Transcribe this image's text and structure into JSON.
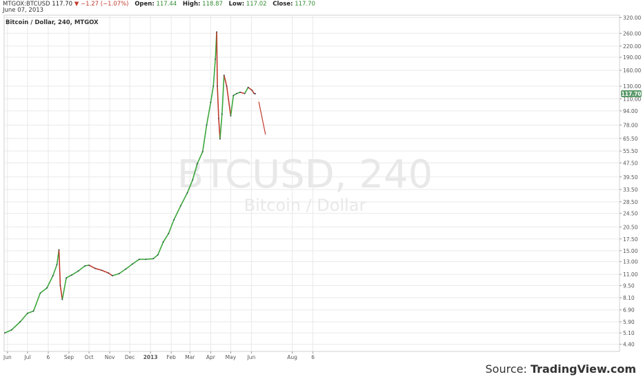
{
  "header": {
    "symbol": "MTGOX:BTCUSD",
    "last": "117.70",
    "change_arrow": "▼",
    "change": "−1.27 (−1.07%)",
    "open_label": "Open:",
    "open": "117.44",
    "high_label": "High:",
    "high": "118.87",
    "low_label": "Low:",
    "low": "117.02",
    "close_label": "Close:",
    "close": "117.70",
    "date": "June 07, 2013"
  },
  "chart_title": "Bitcoin / Dollar, 240, MTGOX",
  "watermark": {
    "line1": "BTCUSD, 240",
    "line2": "Bitcoin / Dollar"
  },
  "source": {
    "prefix": "Source: ",
    "brand": "TradingView.com"
  },
  "price_badge": "117.70",
  "colors": {
    "up": "#3aa63a",
    "down": "#c0392b",
    "line": "#2c3e50",
    "badge": "#5a9a6a",
    "grid": "#e9e9e9"
  },
  "chart_data": {
    "type": "line",
    "y_scale": "log",
    "ylim": [
      4.0,
      330
    ],
    "y_ticks": [
      "320.00",
      "260.00",
      "220.00",
      "190.00",
      "160.00",
      "130.00",
      "110.00",
      "94.00",
      "78.00",
      "65.50",
      "55.50",
      "47.50",
      "39.50",
      "33.50",
      "28.50",
      "24.50",
      "20.50",
      "17.50",
      "15.00",
      "13.00",
      "11.00",
      "9.50",
      "8.10",
      "6.90",
      "5.90",
      "5.10",
      "4.40"
    ],
    "x_ticks": [
      "Jun",
      "Jul",
      "6",
      "Sep",
      "Oct",
      "Nov",
      "Dec",
      "2013",
      "Feb",
      "Mar",
      "Apr",
      "May",
      "Jun",
      "Aug",
      "6"
    ],
    "series": [
      {
        "x": [
          "2012-05-28",
          "2012-06-07",
          "2012-06-20",
          "2012-07-01",
          "2012-07-10",
          "2012-07-20",
          "2012-07-30",
          "2012-08-08",
          "2012-08-14",
          "2012-08-17",
          "2012-08-19",
          "2012-08-22",
          "2012-08-28",
          "2012-09-05",
          "2012-09-15",
          "2012-09-25",
          "2012-10-01",
          "2012-10-10",
          "2012-10-20",
          "2012-10-30",
          "2012-11-05",
          "2012-11-15",
          "2012-11-25",
          "2012-12-05",
          "2012-12-15",
          "2012-12-25",
          "2013-01-05",
          "2013-01-12",
          "2013-01-20",
          "2013-01-28",
          "2013-02-05",
          "2013-02-15",
          "2013-02-25",
          "2013-03-05",
          "2013-03-12",
          "2013-03-20",
          "2013-03-26",
          "2013-04-01",
          "2013-04-05",
          "2013-04-08",
          "2013-04-10",
          "2013-04-11",
          "2013-04-13",
          "2013-04-15",
          "2013-04-18",
          "2013-04-21",
          "2013-04-25",
          "2013-05-01",
          "2013-05-05",
          "2013-05-10",
          "2013-05-15",
          "2013-05-22",
          "2013-05-27",
          "2013-06-02",
          "2013-06-05",
          "2013-06-07"
        ],
        "y": [
          5.1,
          5.3,
          5.9,
          6.6,
          6.8,
          8.6,
          9.2,
          10.8,
          12.5,
          15.2,
          9.5,
          7.9,
          10.5,
          10.9,
          11.5,
          12.3,
          12.4,
          11.9,
          11.6,
          11.2,
          10.8,
          11.1,
          11.8,
          12.6,
          13.4,
          13.4,
          13.5,
          14.2,
          16.8,
          18.8,
          22.5,
          27,
          32,
          38,
          47,
          55,
          78,
          105,
          130,
          185,
          265,
          130,
          85,
          65,
          90,
          150,
          130,
          88,
          115,
          118,
          120,
          118,
          128,
          123,
          118,
          117.7
        ]
      }
    ],
    "projection": {
      "x": [
        "2013-06-12",
        "2013-06-22"
      ],
      "y": [
        106,
        69
      ]
    }
  }
}
